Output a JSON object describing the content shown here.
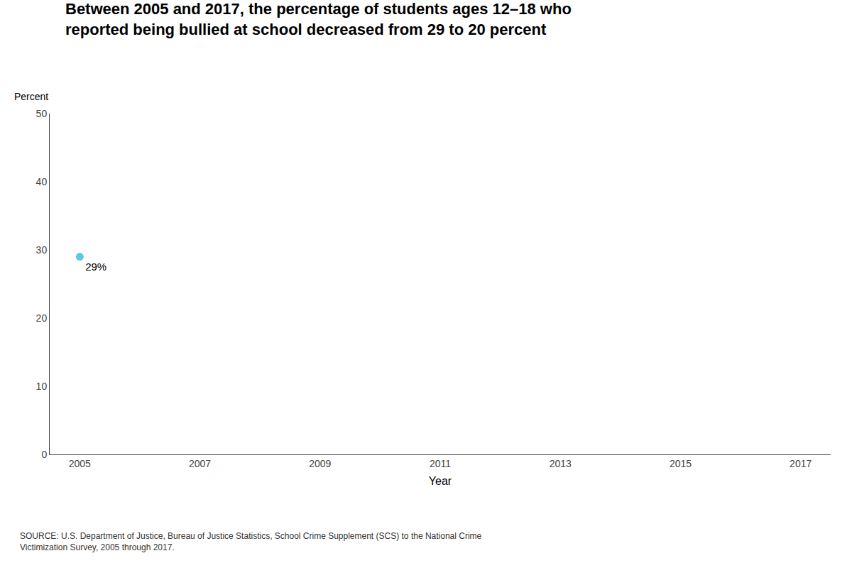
{
  "chart_data": {
    "type": "scatter",
    "title": "Between 2005 and 2017, the percentage of students ages 12–18 who\nreported being bullied at school decreased from 29 to 20 percent",
    "xlabel": "Year",
    "ylabel": "Percent",
    "source": "SOURCE: U.S. Department of Justice, Bureau of Justice Statistics, School Crime Supplement (SCS) to the National Crime\nVictimization Survey, 2005 through 2017.",
    "x": [
      2005
    ],
    "values": [
      29
    ],
    "value_labels": [
      "29%"
    ],
    "data_labels": true,
    "color": "#5bc8e8",
    "xlim": [
      2004.5,
      2017.5
    ],
    "xticks": [
      2005,
      2007,
      2009,
      2011,
      2013,
      2015,
      2017
    ],
    "ylim": [
      0,
      50
    ],
    "yticks": [
      0,
      10,
      20,
      30,
      40,
      50
    ],
    "grid": false
  }
}
